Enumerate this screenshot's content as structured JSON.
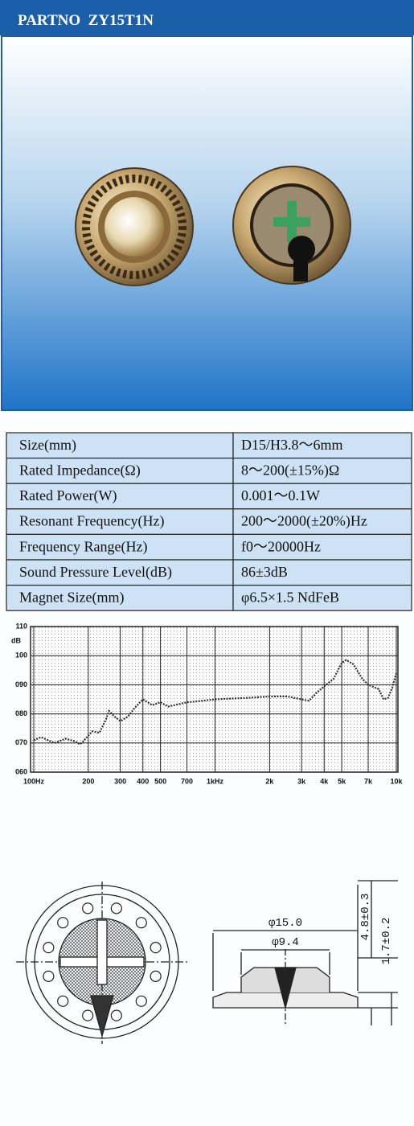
{
  "header": {
    "title": "PARTNO  ZY15T1N"
  },
  "table": {
    "rows": [
      [
        "Size(mm)",
        "D15/H3.8～6mm"
      ],
      [
        "Rated Impedance(Ω)",
        "8～200(±15%)Ω"
      ],
      [
        "Rated Power(W)",
        "0.001～0.1W"
      ],
      [
        "Resonant Frequency(Hz)",
        "200～2000(±20%)Hz"
      ],
      [
        "Frequency Range(Hz)",
        "f0～20000Hz"
      ],
      [
        "Sound Pressure Level(dB)",
        "86±3dB"
      ],
      [
        "Magnet Size(mm)",
        "φ6.5×1.5 NdFeB"
      ]
    ]
  },
  "chart_data": {
    "type": "line",
    "y_label": "dB",
    "x_scale": "log",
    "grid": true,
    "x": [
      100,
      110,
      130,
      150,
      170,
      180,
      190,
      210,
      230,
      250,
      260,
      280,
      300,
      330,
      360,
      400,
      450,
      500,
      550,
      650,
      700,
      800,
      1000,
      1500,
      2000,
      2500,
      3000,
      3300,
      3600,
      4000,
      4500,
      5000,
      5300,
      5800,
      6500,
      7000,
      8000,
      8500,
      9000,
      9500,
      10000
    ],
    "series": [
      {
        "color": "#333333",
        "values": [
          71,
          72,
          70,
          71.5,
          70.5,
          69.5,
          71,
          74,
          73.5,
          78,
          81,
          79,
          77.5,
          79,
          82,
          85,
          83,
          84,
          82.5,
          83.5,
          84,
          84.3,
          85,
          85.5,
          86,
          86,
          85,
          84.5,
          87,
          89.5,
          92,
          97.5,
          98.5,
          97,
          92,
          90,
          88.5,
          85,
          85.5,
          89,
          94
        ]
      }
    ],
    "xlim": [
      100,
      10000
    ],
    "xticks": [
      {
        "value": 100,
        "label": "100Hz"
      },
      200,
      300,
      400,
      500,
      700,
      {
        "value": 1000,
        "label": "1kHz"
      },
      {
        "value": 2000,
        "label": "2k"
      },
      {
        "value": 3000,
        "label": "3k"
      },
      {
        "value": 4000,
        "label": "4k"
      },
      {
        "value": 5000,
        "label": "5k"
      },
      {
        "value": 7000,
        "label": "7k"
      },
      {
        "value": 10000,
        "label": "10k"
      }
    ],
    "ylim": [
      60,
      110
    ],
    "yticks": [
      {
        "value": 60,
        "label": "060"
      },
      {
        "value": 70,
        "label": "070"
      },
      {
        "value": 80,
        "label": "080"
      },
      {
        "value": 90,
        "label": "090"
      },
      100,
      110
    ]
  },
  "drawing": {
    "outer_diameter": "φ15.0",
    "inner_diameter": "φ9.4",
    "total_height": "4.8±0.3",
    "body_height": "1.7±0.2"
  }
}
